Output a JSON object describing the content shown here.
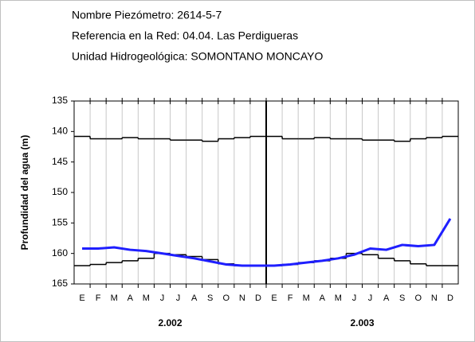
{
  "chart_data": {
    "type": "line",
    "header_lines": [
      "Nombre Piezómetro: 2614-5-7",
      "Referencia en la Red: 04.04. Las Perdigueras",
      "Unidad Hidrogeológica: SOMONTANO MONCAYO"
    ],
    "y_label": "Profundidad del agua (m)",
    "categories": [
      "E",
      "F",
      "M",
      "A",
      "M",
      "J",
      "J",
      "A",
      "S",
      "O",
      "N",
      "D",
      "E",
      "F",
      "M",
      "A",
      "M",
      "J",
      "J",
      "A",
      "S",
      "O",
      "N",
      "D"
    ],
    "year_labels": [
      "2.002",
      "2.003"
    ],
    "ylim": [
      135,
      165
    ],
    "y_inverted": true,
    "yticks": [
      135,
      140,
      145,
      150,
      155,
      160,
      165
    ],
    "grid": true,
    "series": [
      {
        "color": "#000000",
        "drawstyle": "steps",
        "values": [
          140.8,
          141.2,
          141.2,
          141.0,
          141.2,
          141.2,
          141.4,
          141.4,
          141.6,
          141.2,
          141.0,
          140.8,
          140.8,
          141.2,
          141.2,
          141.0,
          141.2,
          141.2,
          141.4,
          141.4,
          141.6,
          141.2,
          141.0,
          140.8
        ]
      },
      {
        "color": "#000000",
        "drawstyle": "steps",
        "values": [
          162.0,
          161.8,
          161.5,
          161.2,
          160.8,
          160.0,
          160.2,
          160.5,
          161.0,
          161.7,
          162.0,
          162.0,
          162.0,
          161.8,
          161.5,
          161.2,
          160.8,
          160.0,
          160.2,
          160.8,
          161.2,
          161.7,
          162.0,
          162.0
        ]
      },
      {
        "color": "#1f1fff",
        "drawstyle": "line",
        "values": [
          159.2,
          159.2,
          159.0,
          159.4,
          159.6,
          160.0,
          160.4,
          160.8,
          161.3,
          161.8,
          162.0,
          162.0,
          162.0,
          161.8,
          161.5,
          161.2,
          160.8,
          160.2,
          159.2,
          159.4,
          158.6,
          158.8,
          158.6,
          154.3
        ]
      }
    ]
  }
}
